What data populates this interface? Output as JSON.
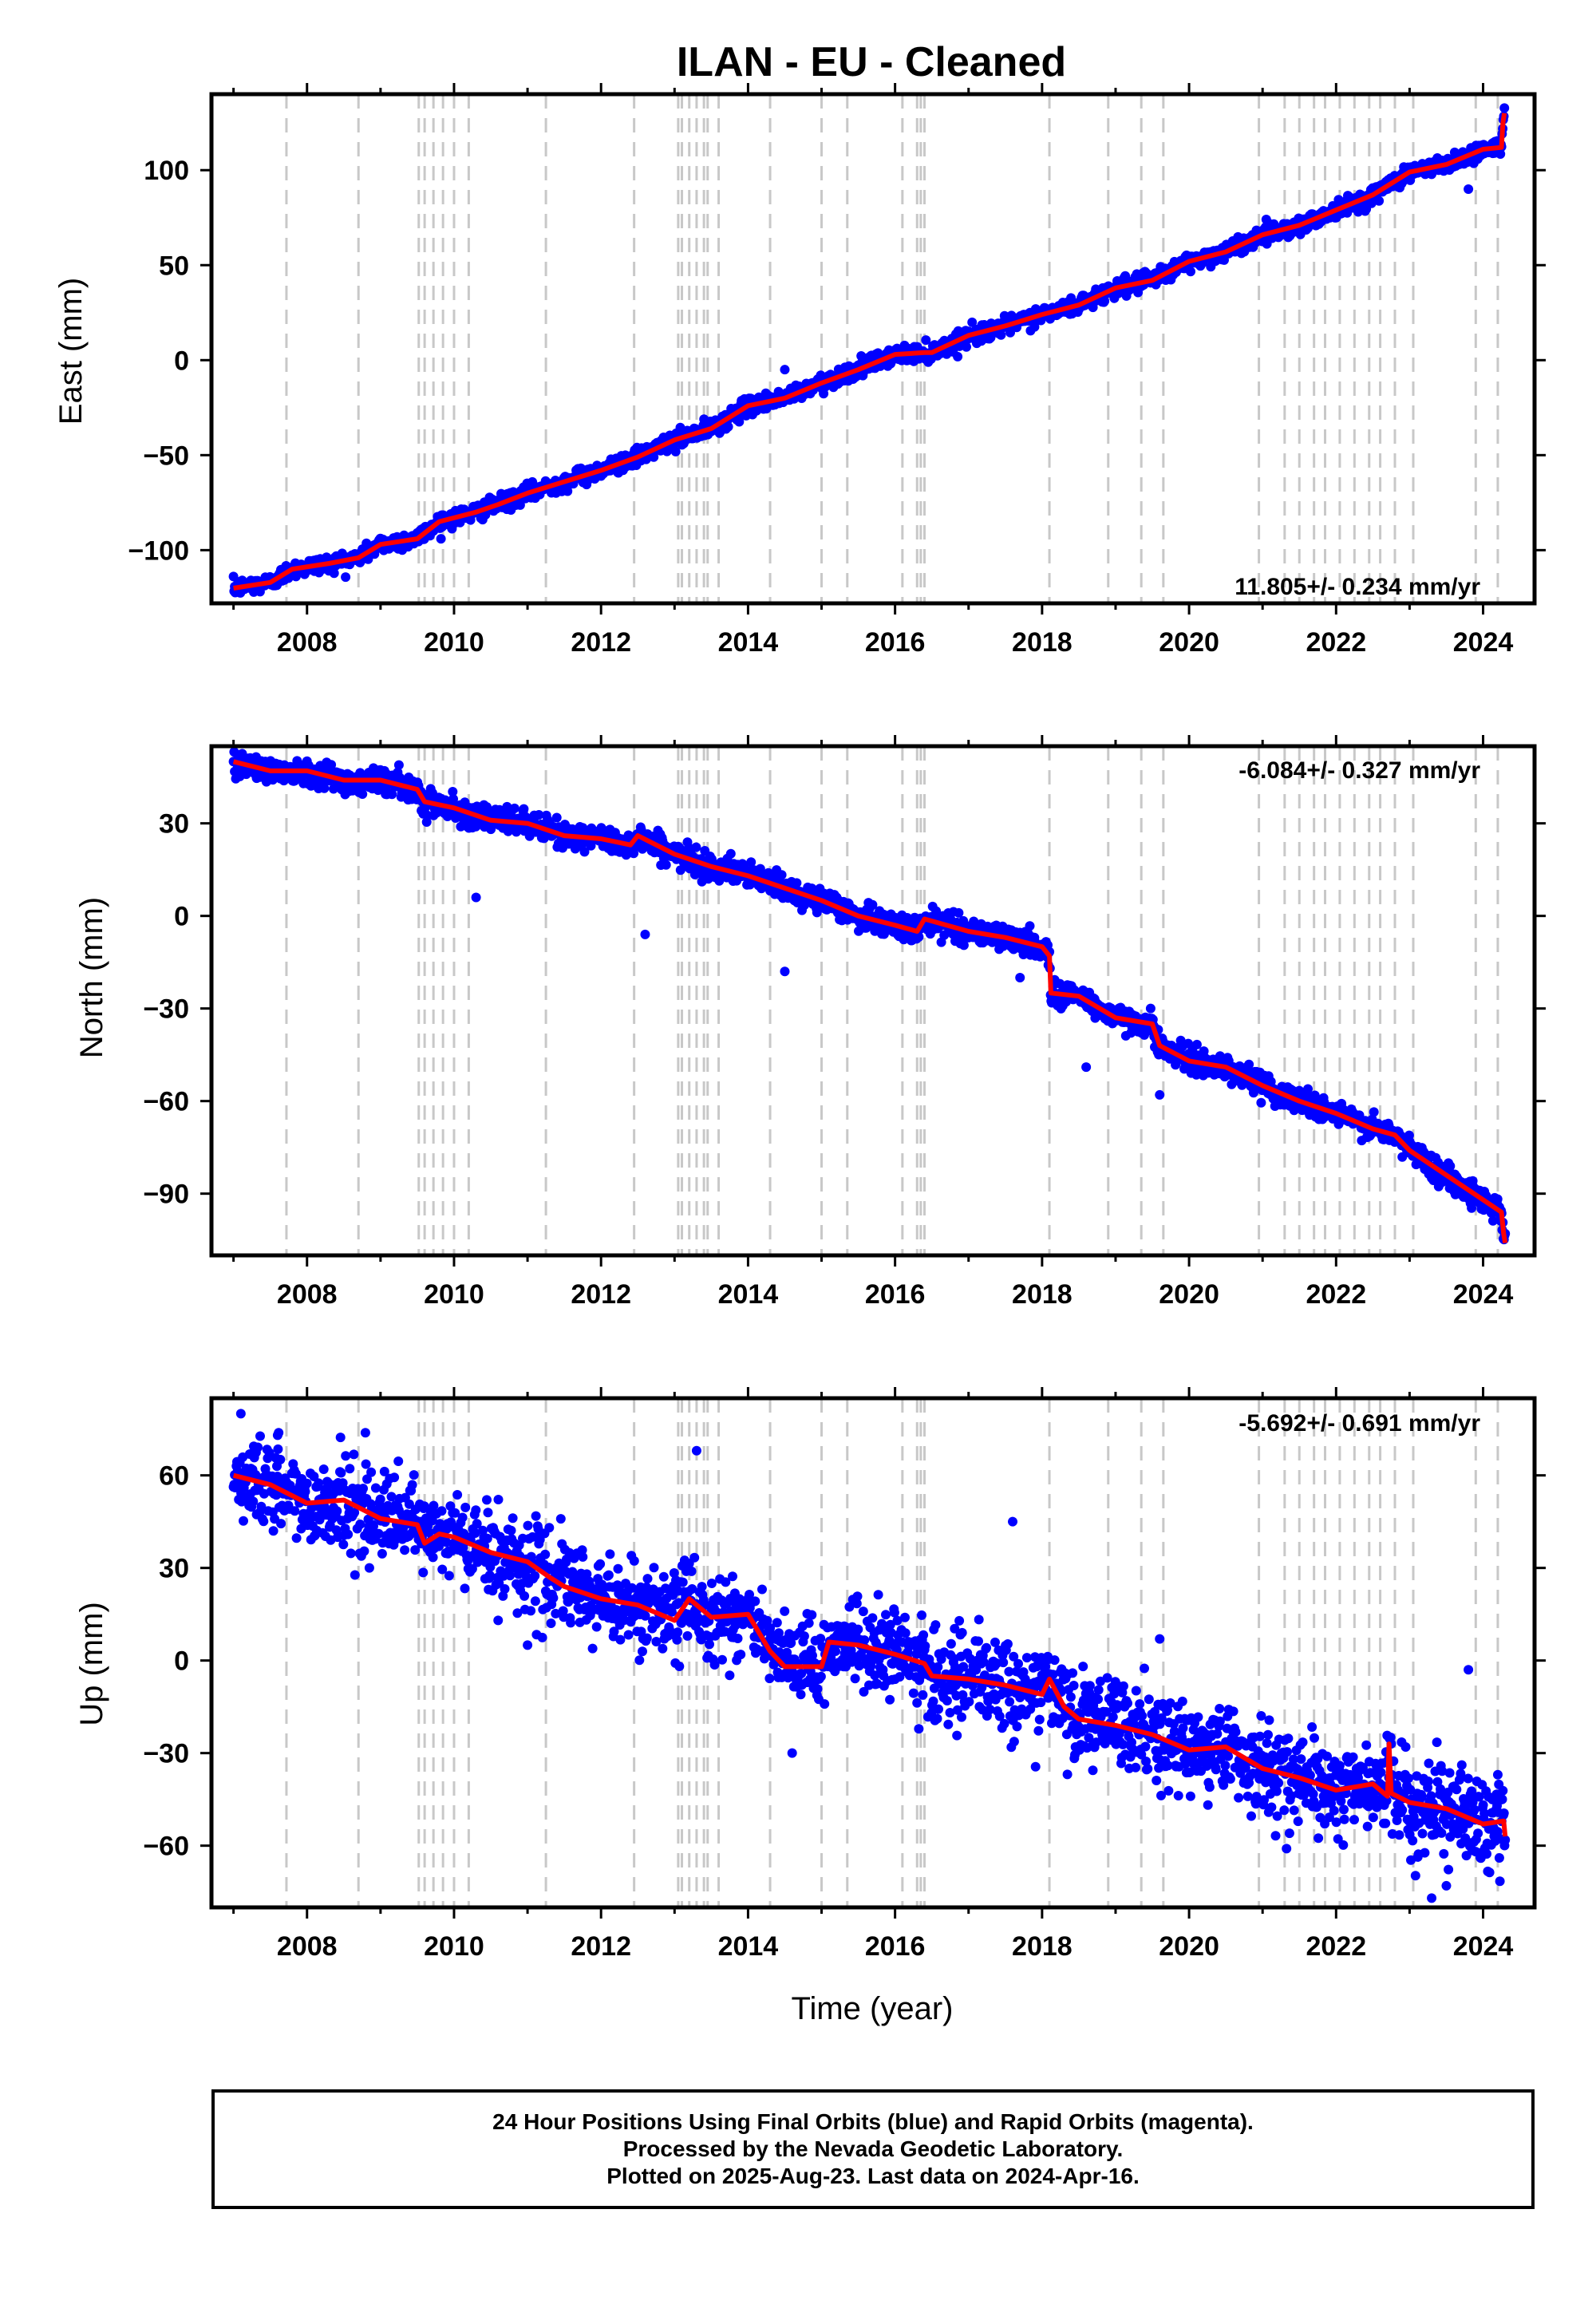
{
  "title": "ILAN  - EU - Cleaned",
  "xlabel": "Time (year)",
  "footer": {
    "line1": "24 Hour Positions Using Final Orbits (blue) and Rapid Orbits (magenta).",
    "line2": "Processed by the Nevada Geodetic Laboratory.",
    "line3": "Plotted on 2025-Aug-23. Last data on 2024-Apr-16."
  },
  "colors": {
    "points": "#0000ff",
    "model": "#ff0000",
    "steps": "#c8c8c8",
    "axis": "#000000"
  },
  "chart_data": [
    {
      "type": "scatter",
      "name": "east",
      "ylabel": "East (mm)",
      "rate": "11.805+/- 0.234 mm/yr",
      "rate_position": "bottom-right",
      "xlim": [
        2006.7,
        2024.7
      ],
      "ylim": [
        -128,
        140
      ],
      "yticks": [
        -100,
        -50,
        0,
        50,
        100
      ],
      "ytick_labels": [
        "−100",
        "−50",
        "0",
        "50",
        "100"
      ],
      "xticks": [
        2008,
        2010,
        2012,
        2014,
        2016,
        2018,
        2020,
        2022,
        2024
      ],
      "trend": {
        "start_year": 2007.0,
        "start_value": -120,
        "end_year": 2024.29,
        "end_value": 113
      },
      "model": [
        [
          2007.0,
          -120
        ],
        [
          2007.5,
          -117
        ],
        [
          2007.8,
          -110
        ],
        [
          2008.3,
          -107
        ],
        [
          2008.7,
          -104
        ],
        [
          2009.0,
          -97
        ],
        [
          2009.5,
          -94
        ],
        [
          2009.8,
          -85
        ],
        [
          2010.3,
          -80
        ],
        [
          2010.6,
          -76
        ],
        [
          2011.0,
          -70
        ],
        [
          2011.5,
          -64
        ],
        [
          2012.0,
          -58
        ],
        [
          2012.5,
          -51
        ],
        [
          2013.0,
          -42
        ],
        [
          2013.5,
          -36
        ],
        [
          2014.0,
          -24
        ],
        [
          2014.5,
          -20
        ],
        [
          2015.0,
          -12
        ],
        [
          2015.5,
          -5
        ],
        [
          2016.0,
          3
        ],
        [
          2016.4,
          4
        ],
        [
          2016.5,
          4
        ],
        [
          2017.0,
          13
        ],
        [
          2017.5,
          18
        ],
        [
          2018.0,
          24
        ],
        [
          2018.5,
          29
        ],
        [
          2019.0,
          38
        ],
        [
          2019.5,
          42
        ],
        [
          2020.0,
          52
        ],
        [
          2020.5,
          57
        ],
        [
          2021.0,
          66
        ],
        [
          2021.5,
          71
        ],
        [
          2022.0,
          79
        ],
        [
          2022.5,
          87
        ],
        [
          2023.0,
          99
        ],
        [
          2023.5,
          103
        ],
        [
          2024.0,
          111
        ],
        [
          2024.25,
          112
        ],
        [
          2024.27,
          125
        ],
        [
          2024.29,
          130
        ]
      ],
      "outliers": [
        [
          2014.5,
          -5
        ],
        [
          2023.8,
          90
        ]
      ]
    },
    {
      "type": "scatter",
      "name": "north",
      "ylabel": "North (mm)",
      "rate": "-6.084+/- 0.327 mm/yr",
      "rate_position": "top-right",
      "xlim": [
        2006.7,
        2024.7
      ],
      "ylim": [
        -110,
        55
      ],
      "yticks": [
        -90,
        -60,
        -30,
        0,
        30
      ],
      "ytick_labels": [
        "−90",
        "−60",
        "−30",
        "0",
        "30"
      ],
      "xticks": [
        2008,
        2010,
        2012,
        2014,
        2016,
        2018,
        2020,
        2022,
        2024
      ],
      "model": [
        [
          2007.0,
          50
        ],
        [
          2007.5,
          47
        ],
        [
          2008.0,
          47
        ],
        [
          2008.5,
          44
        ],
        [
          2009.0,
          44
        ],
        [
          2009.5,
          41
        ],
        [
          2009.6,
          37
        ],
        [
          2010.0,
          35
        ],
        [
          2010.5,
          31
        ],
        [
          2011.0,
          30
        ],
        [
          2011.5,
          26
        ],
        [
          2012.0,
          25
        ],
        [
          2012.4,
          23
        ],
        [
          2012.5,
          26
        ],
        [
          2013.0,
          20
        ],
        [
          2013.5,
          16
        ],
        [
          2014.0,
          13
        ],
        [
          2014.5,
          9
        ],
        [
          2015.0,
          5
        ],
        [
          2015.5,
          0
        ],
        [
          2016.0,
          -3
        ],
        [
          2016.3,
          -5
        ],
        [
          2016.4,
          -1
        ],
        [
          2017.0,
          -5
        ],
        [
          2017.5,
          -7
        ],
        [
          2018.0,
          -10
        ],
        [
          2018.1,
          -13
        ],
        [
          2018.12,
          -25
        ],
        [
          2018.5,
          -26
        ],
        [
          2019.0,
          -33
        ],
        [
          2019.5,
          -35
        ],
        [
          2019.6,
          -42
        ],
        [
          2020.0,
          -47
        ],
        [
          2020.5,
          -49
        ],
        [
          2021.0,
          -55
        ],
        [
          2021.5,
          -60
        ],
        [
          2022.0,
          -64
        ],
        [
          2022.5,
          -69
        ],
        [
          2022.8,
          -71
        ],
        [
          2023.0,
          -76
        ],
        [
          2023.5,
          -84
        ],
        [
          2024.0,
          -92
        ],
        [
          2024.25,
          -96
        ],
        [
          2024.28,
          -103
        ],
        [
          2024.3,
          -106
        ]
      ],
      "outliers": [
        [
          2010.3,
          6
        ],
        [
          2012.6,
          -6
        ],
        [
          2014.5,
          -18
        ],
        [
          2018.6,
          -49
        ],
        [
          2019.6,
          -58
        ],
        [
          2017.7,
          -20
        ]
      ]
    },
    {
      "type": "scatter",
      "name": "up",
      "ylabel": "Up (mm)",
      "rate": "-5.692+/- 0.691 mm/yr",
      "rate_position": "top-right",
      "xlim": [
        2006.7,
        2024.7
      ],
      "ylim": [
        -80,
        85
      ],
      "yticks": [
        -60,
        -30,
        0,
        30,
        60
      ],
      "ytick_labels": [
        "−60",
        "−30",
        "0",
        "30",
        "60"
      ],
      "xticks": [
        2008,
        2010,
        2012,
        2014,
        2016,
        2018,
        2020,
        2022,
        2024
      ],
      "model": [
        [
          2007.0,
          60
        ],
        [
          2007.5,
          57
        ],
        [
          2008.0,
          51
        ],
        [
          2008.5,
          52
        ],
        [
          2009.0,
          46
        ],
        [
          2009.5,
          44
        ],
        [
          2009.6,
          38
        ],
        [
          2009.8,
          41
        ],
        [
          2010.0,
          40
        ],
        [
          2010.5,
          35
        ],
        [
          2011.0,
          32
        ],
        [
          2011.3,
          27
        ],
        [
          2011.5,
          24
        ],
        [
          2012.0,
          20
        ],
        [
          2012.5,
          18
        ],
        [
          2013.0,
          13
        ],
        [
          2013.2,
          20
        ],
        [
          2013.5,
          14
        ],
        [
          2014.0,
          15
        ],
        [
          2014.3,
          3
        ],
        [
          2014.5,
          -2
        ],
        [
          2015.0,
          -2
        ],
        [
          2015.1,
          6
        ],
        [
          2015.5,
          5
        ],
        [
          2016.0,
          2
        ],
        [
          2016.4,
          -1
        ],
        [
          2016.5,
          -5
        ],
        [
          2017.0,
          -6
        ],
        [
          2017.5,
          -8
        ],
        [
          2018.0,
          -11
        ],
        [
          2018.1,
          -6
        ],
        [
          2018.3,
          -15
        ],
        [
          2018.5,
          -19
        ],
        [
          2019.0,
          -21
        ],
        [
          2019.5,
          -24
        ],
        [
          2020.0,
          -29
        ],
        [
          2020.5,
          -28
        ],
        [
          2021.0,
          -35
        ],
        [
          2021.5,
          -38
        ],
        [
          2022.0,
          -42
        ],
        [
          2022.5,
          -40
        ],
        [
          2022.7,
          -44
        ],
        [
          2022.72,
          -27
        ],
        [
          2022.75,
          -43
        ],
        [
          2023.0,
          -46
        ],
        [
          2023.5,
          -48
        ],
        [
          2024.0,
          -53
        ],
        [
          2024.28,
          -52
        ],
        [
          2024.3,
          -57
        ]
      ],
      "outliers": [
        [
          2007.1,
          80
        ],
        [
          2007.6,
          73
        ],
        [
          2010.6,
          13
        ],
        [
          2011.0,
          5
        ],
        [
          2013.3,
          68
        ],
        [
          2014.6,
          -30
        ],
        [
          2017.6,
          45
        ],
        [
          2018.2,
          -10
        ],
        [
          2019.6,
          7
        ],
        [
          2022.3,
          -38
        ],
        [
          2023.3,
          -77
        ],
        [
          2023.5,
          -73
        ],
        [
          2023.8,
          -3
        ],
        [
          2024.2,
          -37
        ]
      ]
    }
  ],
  "steps": [
    2007.72,
    2008.7,
    2009.52,
    2009.6,
    2009.72,
    2009.85,
    2010.0,
    2010.2,
    2011.25,
    2012.45,
    2013.05,
    2013.1,
    2013.2,
    2013.3,
    2013.4,
    2013.45,
    2013.6,
    2014.3,
    2015.0,
    2015.35,
    2016.1,
    2016.3,
    2016.35,
    2016.4,
    2018.1,
    2018.9,
    2019.35,
    2019.65,
    2020.95,
    2021.3,
    2021.5,
    2021.7,
    2021.85,
    2022.05,
    2022.25,
    2022.45,
    2022.6,
    2022.8,
    2023.05,
    2023.9,
    2024.2
  ]
}
